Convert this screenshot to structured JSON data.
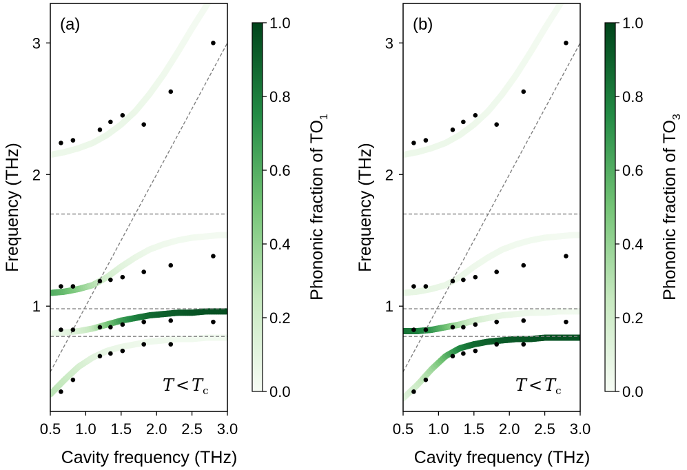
{
  "colorbar": {
    "ticks": [
      "0.0",
      "0.2",
      "0.4",
      "0.6",
      "0.8",
      "1.0"
    ],
    "min": 0,
    "max": 1
  },
  "colors": {
    "low": "#f7fcf5",
    "mid": "#74c476",
    "high": "#00441b",
    "dashed": "#808080"
  },
  "chart_data": [
    {
      "type": "scatter",
      "panel_label": "(a)",
      "xlabel": "Cavity frequency (THz)",
      "ylabel": "Frequency (THz)",
      "colorbar_label": "Phononic fraction of TO",
      "colorbar_sub": "1",
      "annotation": {
        "main": "T",
        "op": "<",
        "t2": "T",
        "sub": "c"
      },
      "xlim": [
        0.5,
        3.0
      ],
      "ylim": [
        0.2,
        3.3
      ],
      "x_ticks": [
        "0.5",
        "1.0",
        "1.5",
        "2.0",
        "2.5",
        "3.0"
      ],
      "y_ticks": [
        "1",
        "2",
        "3"
      ],
      "hlines": [
        0.77,
        0.98,
        1.7
      ],
      "diagonal": [
        [
          0.5,
          0.5
        ],
        [
          3.0,
          3.0
        ]
      ],
      "points": [
        [
          0.65,
          2.24
        ],
        [
          0.82,
          2.26
        ],
        [
          1.2,
          2.34
        ],
        [
          1.35,
          2.4
        ],
        [
          1.52,
          2.45
        ],
        [
          1.82,
          2.38
        ],
        [
          2.2,
          2.63
        ],
        [
          2.8,
          3.0
        ],
        [
          0.65,
          1.15
        ],
        [
          0.82,
          1.15
        ],
        [
          1.2,
          1.19
        ],
        [
          1.35,
          1.2
        ],
        [
          1.52,
          1.22
        ],
        [
          1.82,
          1.26
        ],
        [
          2.2,
          1.31
        ],
        [
          2.8,
          1.38
        ],
        [
          0.65,
          0.82
        ],
        [
          0.82,
          0.82
        ],
        [
          1.2,
          0.84
        ],
        [
          1.35,
          0.84
        ],
        [
          1.52,
          0.86
        ],
        [
          1.82,
          0.88
        ],
        [
          2.2,
          0.89
        ],
        [
          2.8,
          0.88
        ],
        [
          0.65,
          0.35
        ],
        [
          0.82,
          0.44
        ],
        [
          1.2,
          0.62
        ],
        [
          1.35,
          0.64
        ],
        [
          1.52,
          0.66
        ],
        [
          1.82,
          0.71
        ],
        [
          2.2,
          0.71
        ]
      ],
      "bands": [
        {
          "name": "UP",
          "x": [
            0.5,
            0.7,
            0.9,
            1.1,
            1.3,
            1.5,
            1.7,
            1.9,
            2.1,
            2.3,
            2.5,
            2.7,
            2.9,
            3.0
          ],
          "y": [
            2.15,
            2.17,
            2.2,
            2.24,
            2.3,
            2.38,
            2.48,
            2.61,
            2.76,
            2.93,
            3.11,
            3.28,
            3.46,
            3.55
          ],
          "f": [
            0.05,
            0.05,
            0.05,
            0.06,
            0.06,
            0.06,
            0.06,
            0.05,
            0.04,
            0.03,
            0.02,
            0.02,
            0.01,
            0.01
          ]
        },
        {
          "name": "MP2",
          "x": [
            0.5,
            0.7,
            0.9,
            1.1,
            1.3,
            1.5,
            1.7,
            1.9,
            2.1,
            2.3,
            2.5,
            2.7,
            2.9,
            3.0
          ],
          "y": [
            1.1,
            1.11,
            1.13,
            1.16,
            1.22,
            1.3,
            1.37,
            1.43,
            1.47,
            1.5,
            1.52,
            1.53,
            1.54,
            1.54
          ],
          "f": [
            0.62,
            0.55,
            0.45,
            0.32,
            0.2,
            0.12,
            0.08,
            0.05,
            0.04,
            0.03,
            0.03,
            0.02,
            0.02,
            0.02
          ]
        },
        {
          "name": "MP1",
          "x": [
            0.5,
            0.7,
            0.9,
            1.1,
            1.3,
            1.5,
            1.7,
            1.9,
            2.1,
            2.3,
            2.5,
            2.7,
            2.9,
            3.0
          ],
          "y": [
            0.79,
            0.8,
            0.81,
            0.83,
            0.86,
            0.89,
            0.91,
            0.93,
            0.94,
            0.95,
            0.95,
            0.96,
            0.96,
            0.96
          ],
          "f": [
            0.05,
            0.08,
            0.15,
            0.25,
            0.45,
            0.65,
            0.78,
            0.86,
            0.9,
            0.92,
            0.94,
            0.95,
            0.96,
            0.96
          ]
        },
        {
          "name": "LP",
          "x": [
            0.5,
            0.7,
            0.9,
            1.1,
            1.3,
            1.5,
            1.7,
            1.9,
            2.1,
            2.3,
            2.5,
            2.7,
            2.9,
            3.0
          ],
          "y": [
            0.33,
            0.44,
            0.54,
            0.61,
            0.66,
            0.69,
            0.71,
            0.73,
            0.74,
            0.75,
            0.75,
            0.76,
            0.76,
            0.76
          ],
          "f": [
            0.3,
            0.25,
            0.18,
            0.12,
            0.08,
            0.06,
            0.05,
            0.04,
            0.04,
            0.03,
            0.03,
            0.03,
            0.03,
            0.03
          ]
        }
      ]
    },
    {
      "type": "scatter",
      "panel_label": "(b)",
      "xlabel": "Cavity frequency (THz)",
      "ylabel": "Frequency (THz)",
      "colorbar_label": "Phononic fraction of TO",
      "colorbar_sub": "3",
      "annotation": {
        "main": "T",
        "op": "<",
        "t2": "T",
        "sub": "c"
      },
      "xlim": [
        0.5,
        3.0
      ],
      "ylim": [
        0.2,
        3.3
      ],
      "x_ticks": [
        "0.5",
        "1.0",
        "1.5",
        "2.0",
        "2.5",
        "3.0"
      ],
      "y_ticks": [
        "1",
        "2",
        "3"
      ],
      "hlines": [
        0.77,
        0.98,
        1.7
      ],
      "diagonal": [
        [
          0.5,
          0.5
        ],
        [
          3.0,
          3.0
        ]
      ],
      "points": [
        [
          0.65,
          2.24
        ],
        [
          0.82,
          2.26
        ],
        [
          1.2,
          2.34
        ],
        [
          1.35,
          2.4
        ],
        [
          1.52,
          2.45
        ],
        [
          1.82,
          2.38
        ],
        [
          2.2,
          2.63
        ],
        [
          2.8,
          3.0
        ],
        [
          0.65,
          1.15
        ],
        [
          0.82,
          1.15
        ],
        [
          1.2,
          1.19
        ],
        [
          1.35,
          1.2
        ],
        [
          1.52,
          1.22
        ],
        [
          1.82,
          1.26
        ],
        [
          2.2,
          1.31
        ],
        [
          2.8,
          1.38
        ],
        [
          0.65,
          0.82
        ],
        [
          0.82,
          0.82
        ],
        [
          1.2,
          0.84
        ],
        [
          1.35,
          0.84
        ],
        [
          1.52,
          0.86
        ],
        [
          1.82,
          0.88
        ],
        [
          2.2,
          0.89
        ],
        [
          2.8,
          0.88
        ],
        [
          0.65,
          0.35
        ],
        [
          0.82,
          0.44
        ],
        [
          1.2,
          0.62
        ],
        [
          1.35,
          0.64
        ],
        [
          1.52,
          0.66
        ],
        [
          1.82,
          0.71
        ],
        [
          2.2,
          0.71
        ]
      ],
      "bands": [
        {
          "name": "UP",
          "x": [
            0.5,
            0.7,
            0.9,
            1.1,
            1.3,
            1.5,
            1.7,
            1.9,
            2.1,
            2.3,
            2.5,
            2.7,
            2.9,
            3.0
          ],
          "y": [
            2.15,
            2.17,
            2.2,
            2.24,
            2.3,
            2.38,
            2.48,
            2.61,
            2.76,
            2.93,
            3.11,
            3.28,
            3.46,
            3.55
          ],
          "f": [
            0.05,
            0.05,
            0.05,
            0.05,
            0.05,
            0.05,
            0.04,
            0.04,
            0.03,
            0.03,
            0.02,
            0.02,
            0.01,
            0.01
          ]
        },
        {
          "name": "MP2",
          "x": [
            0.5,
            0.7,
            0.9,
            1.1,
            1.3,
            1.5,
            1.7,
            1.9,
            2.1,
            2.3,
            2.5,
            2.7,
            2.9,
            3.0
          ],
          "y": [
            1.1,
            1.11,
            1.13,
            1.16,
            1.22,
            1.3,
            1.37,
            1.43,
            1.47,
            1.5,
            1.52,
            1.53,
            1.54,
            1.54
          ],
          "f": [
            0.08,
            0.08,
            0.08,
            0.07,
            0.06,
            0.05,
            0.04,
            0.04,
            0.03,
            0.03,
            0.03,
            0.02,
            0.02,
            0.02
          ]
        },
        {
          "name": "MP1",
          "x": [
            0.5,
            0.7,
            0.9,
            1.1,
            1.3,
            1.5,
            1.7,
            1.9,
            2.1,
            2.3,
            2.5,
            2.7,
            2.9,
            3.0
          ],
          "y": [
            0.81,
            0.81,
            0.82,
            0.84,
            0.86,
            0.89,
            0.91,
            0.93,
            0.94,
            0.95,
            0.95,
            0.96,
            0.96,
            0.96
          ],
          "f": [
            0.85,
            0.8,
            0.72,
            0.55,
            0.35,
            0.2,
            0.12,
            0.08,
            0.06,
            0.05,
            0.04,
            0.04,
            0.03,
            0.03
          ]
        },
        {
          "name": "LP",
          "x": [
            0.5,
            0.7,
            0.9,
            1.1,
            1.3,
            1.5,
            1.7,
            1.9,
            2.1,
            2.3,
            2.5,
            2.7,
            2.9,
            3.0
          ],
          "y": [
            0.3,
            0.4,
            0.52,
            0.62,
            0.68,
            0.71,
            0.73,
            0.74,
            0.75,
            0.75,
            0.76,
            0.76,
            0.76,
            0.76
          ],
          "f": [
            0.1,
            0.2,
            0.35,
            0.55,
            0.75,
            0.86,
            0.9,
            0.92,
            0.93,
            0.94,
            0.95,
            0.95,
            0.95,
            0.95
          ]
        }
      ]
    }
  ]
}
